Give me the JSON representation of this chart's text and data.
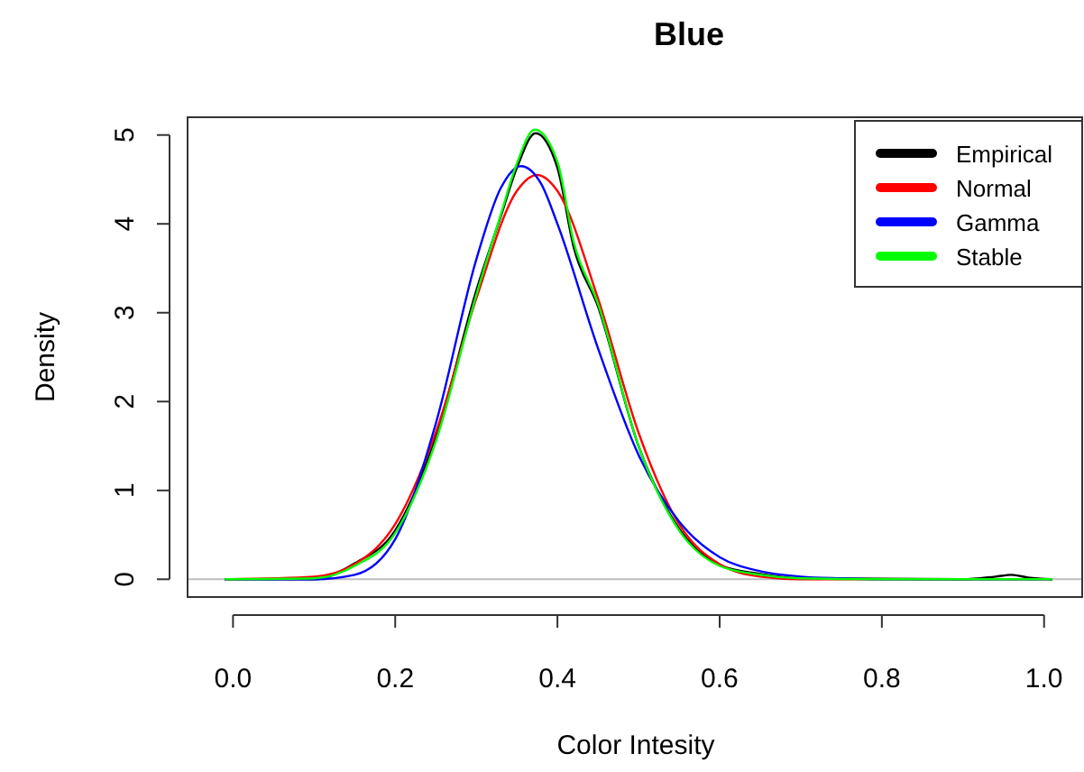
{
  "chart_data": {
    "type": "line",
    "title": "Blue",
    "xlabel": "Color Intesity",
    "ylabel": "Density",
    "xlim": [
      -0.056,
      1.047
    ],
    "ylim": [
      -0.2,
      5.2
    ],
    "xticks": [
      {
        "value": 0,
        "label": "0.0"
      },
      0.2,
      0.4,
      0.6,
      0.8,
      {
        "value": 1,
        "label": "1.0"
      }
    ],
    "yticks": [
      0,
      1,
      2,
      3,
      4,
      5
    ],
    "legend": "top right",
    "grid": false,
    "marker": "none",
    "line_style": "solid",
    "ref_lines": [
      {
        "axis": "y",
        "value": 0,
        "color": "#bebebe"
      }
    ],
    "series": [
      {
        "name": "Empirical",
        "color": "#000000",
        "x": [
          -0.01,
          0.1,
          0.15,
          0.2,
          0.25,
          0.3,
          0.33,
          0.35,
          0.373,
          0.4,
          0.42,
          0.45,
          0.5,
          0.55,
          0.6,
          0.65,
          0.7,
          0.9,
          0.94,
          0.96,
          0.98,
          1.01
        ],
        "values": [
          0,
          0,
          0.18,
          0.55,
          1.6,
          3.25,
          4.08,
          4.63,
          5.02,
          4.63,
          3.74,
          3.07,
          1.5,
          0.57,
          0.16,
          0.06,
          0.01,
          0,
          0.03,
          0.05,
          0.02,
          0
        ]
      },
      {
        "name": "Normal",
        "color": "#ff0000",
        "x": [
          -0.01,
          0.1,
          0.15,
          0.2,
          0.25,
          0.3,
          0.35,
          0.375,
          0.4,
          0.45,
          0.5,
          0.55,
          0.6,
          0.65,
          0.7,
          1.01
        ],
        "values": [
          0,
          0.03,
          0.17,
          0.62,
          1.65,
          3.16,
          4.37,
          4.55,
          4.37,
          3.16,
          1.65,
          0.62,
          0.17,
          0.03,
          0,
          0
        ]
      },
      {
        "name": "Gamma",
        "color": "#0000ff",
        "x": [
          -0.01,
          0.1,
          0.15,
          0.2,
          0.25,
          0.3,
          0.33,
          0.355,
          0.38,
          0.4,
          0.45,
          0.5,
          0.55,
          0.6,
          0.65,
          0.7,
          0.75,
          0.8,
          1.01
        ],
        "values": [
          0,
          0,
          0.05,
          0.45,
          1.75,
          3.6,
          4.4,
          4.65,
          4.45,
          4.0,
          2.6,
          1.4,
          0.65,
          0.25,
          0.09,
          0.03,
          0.01,
          0,
          0
        ]
      },
      {
        "name": "Stable",
        "color": "#00ff00",
        "x": [
          -0.01,
          0.1,
          0.15,
          0.2,
          0.25,
          0.3,
          0.33,
          0.35,
          0.372,
          0.4,
          0.42,
          0.45,
          0.5,
          0.55,
          0.6,
          0.65,
          0.7,
          0.8,
          1.01
        ],
        "values": [
          0,
          0.01,
          0.15,
          0.52,
          1.55,
          3.2,
          4.1,
          4.68,
          5.06,
          4.7,
          3.8,
          3.1,
          1.5,
          0.55,
          0.15,
          0.05,
          0.01,
          0,
          0
        ]
      }
    ]
  }
}
